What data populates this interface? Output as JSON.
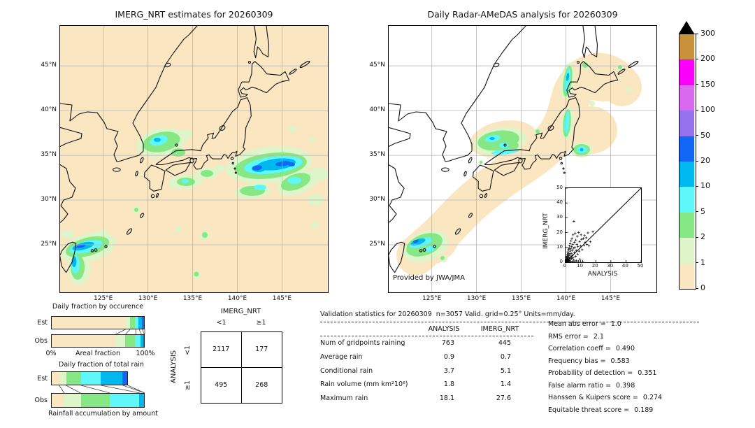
{
  "left_map": {
    "title": "IMERG_NRT estimates for 20260309"
  },
  "right_map": {
    "title": "Daily Radar-AMeDAS analysis for 20260309",
    "credit": "Provided by JWA/JMA"
  },
  "map_axes": {
    "lon_ticks": [
      "125°E",
      "130°E",
      "135°E",
      "140°E",
      "145°E"
    ],
    "lat_ticks": [
      "45°N",
      "40°N",
      "35°N",
      "30°N",
      "25°N"
    ]
  },
  "colorbar": {
    "labels": [
      "0",
      "1",
      "2",
      "5",
      "10",
      "20",
      "50",
      "100",
      "150",
      "200",
      "300"
    ],
    "colors": [
      "#fbe6c2",
      "#ddf5c8",
      "#85e885",
      "#5ef7fa",
      "#00b8f0",
      "#1166f5",
      "#9472ee",
      "#d96af0",
      "#fa00fa",
      "#c8913a"
    ],
    "overflow_color": "#000000"
  },
  "chart_data": [
    {
      "type": "bar",
      "subtype": "stacked-horizontal",
      "title": "Daily fraction by occurence",
      "xlabel": "Areal fraction",
      "x0_label": "0%",
      "x1_label": "100%",
      "categories": [
        "Est",
        "Obs"
      ],
      "series": [
        {
          "name": "Est",
          "length": 1.0,
          "fractions": [
            0.795,
            0.05,
            0.06,
            0.035,
            0.035,
            0.025
          ]
        },
        {
          "name": "Obs",
          "length": 1.0,
          "fractions": [
            0.69,
            0.105,
            0.11,
            0.06,
            0.03,
            0.005
          ]
        }
      ],
      "bin_edges_mm": [
        0,
        1,
        2,
        5,
        10,
        20,
        50
      ]
    },
    {
      "type": "bar",
      "subtype": "stacked-horizontal",
      "title": "Daily fraction of total rain",
      "xlabel": "Rainfall accumulation by amount",
      "categories": [
        "Est",
        "Obs"
      ],
      "series": [
        {
          "name": "Est",
          "length": 0.82,
          "fractions": [
            0.105,
            0.09,
            0.195,
            0.26,
            0.285,
            0.065
          ]
        },
        {
          "name": "Obs",
          "length": 1.0,
          "fractions": [
            0.14,
            0.175,
            0.315,
            0.32,
            0.05,
            0
          ]
        }
      ],
      "bin_edges_mm": [
        0,
        1,
        2,
        5,
        10,
        20,
        50
      ]
    },
    {
      "type": "scatter",
      "xlabel": "ANALYSIS",
      "ylabel": "IMERG_NRT",
      "xlim": [
        0,
        50
      ],
      "ylim": [
        0,
        50
      ],
      "ticks": [
        0,
        10,
        20,
        30,
        40,
        50
      ],
      "diagonal": true,
      "points": [
        [
          0.1,
          0.2
        ],
        [
          0.2,
          0.8
        ],
        [
          0.3,
          0.1
        ],
        [
          0.3,
          1.5
        ],
        [
          0.4,
          0.5
        ],
        [
          0.5,
          2.2
        ],
        [
          0.5,
          0.3
        ],
        [
          0.6,
          1
        ],
        [
          0.7,
          3
        ],
        [
          0.8,
          0.6
        ],
        [
          0.8,
          1.8
        ],
        [
          0.9,
          4
        ],
        [
          1,
          0.2
        ],
        [
          1,
          1.2
        ],
        [
          1.1,
          2.5
        ],
        [
          1.2,
          5.5
        ],
        [
          1.3,
          0.8
        ],
        [
          1.4,
          3.2
        ],
        [
          1.5,
          1.5
        ],
        [
          1.5,
          7
        ],
        [
          1.6,
          0.3
        ],
        [
          1.7,
          4.5
        ],
        [
          1.8,
          2
        ],
        [
          1.9,
          8.5
        ],
        [
          2,
          0.5
        ],
        [
          2,
          3.5
        ],
        [
          2.1,
          1.2
        ],
        [
          2.2,
          6
        ],
        [
          2.3,
          9.5
        ],
        [
          2.5,
          2.8
        ],
        [
          2.5,
          11
        ],
        [
          2.7,
          0.9
        ],
        [
          2.8,
          5
        ],
        [
          3,
          1.8
        ],
        [
          3,
          7.5
        ],
        [
          3.1,
          12.5
        ],
        [
          3.3,
          3.5
        ],
        [
          3.4,
          9
        ],
        [
          3.5,
          0.4
        ],
        [
          3.6,
          14.5
        ],
        [
          3.8,
          6
        ],
        [
          4,
          2.5
        ],
        [
          4,
          10.5
        ],
        [
          4.2,
          16
        ],
        [
          4.4,
          4.5
        ],
        [
          4.5,
          8
        ],
        [
          4.6,
          0.7
        ],
        [
          4.8,
          12
        ],
        [
          5,
          3
        ],
        [
          5,
          18.5
        ],
        [
          5.2,
          9.5
        ],
        [
          5.4,
          1.5
        ],
        [
          5.5,
          27.6
        ],
        [
          5.7,
          6.5
        ],
        [
          5.9,
          13.5
        ],
        [
          6,
          0.5
        ],
        [
          6.2,
          10
        ],
        [
          6.4,
          19.5
        ],
        [
          6.6,
          4
        ],
        [
          6.8,
          15
        ],
        [
          7,
          8
        ],
        [
          7.2,
          1
        ],
        [
          7.5,
          12
        ],
        [
          7.8,
          17.5
        ],
        [
          8,
          5.5
        ],
        [
          8.2,
          10.5
        ],
        [
          8.5,
          0.6
        ],
        [
          8.7,
          20
        ],
        [
          9,
          7.5
        ],
        [
          9.3,
          14
        ],
        [
          9.6,
          2
        ],
        [
          10,
          11
        ],
        [
          10.3,
          18.5
        ],
        [
          10.6,
          15.5
        ],
        [
          11,
          8.5
        ],
        [
          11.4,
          0.8
        ],
        [
          11.8,
          16
        ],
        [
          12.2,
          11.5
        ],
        [
          12.6,
          18
        ],
        [
          13,
          13.5
        ],
        [
          13.6,
          16.5
        ],
        [
          14.2,
          12
        ],
        [
          14.8,
          19.8
        ],
        [
          15.5,
          11
        ],
        [
          16.4,
          13.8
        ],
        [
          18.1,
          20.5
        ]
      ]
    }
  ],
  "contingency": {
    "col_header": "IMERG_NRT",
    "row_header": "ANALYSIS",
    "col_labels": [
      "<1",
      "≥1"
    ],
    "row_labels": [
      "<1",
      "≥1"
    ],
    "cells": [
      [
        "2117",
        "177"
      ],
      [
        "495",
        "268"
      ]
    ]
  },
  "stats": {
    "title": "Validation statistics for 20260309  n=3057 Valid. grid=0.25° Units=mm/day.",
    "columns": [
      "ANALYSIS",
      "IMERG_NRT"
    ],
    "rows": [
      {
        "label": "Num of gridpoints raining",
        "analysis": "763",
        "imerg": "445"
      },
      {
        "label": "Average rain",
        "analysis": "0.9",
        "imerg": "0.7"
      },
      {
        "label": "Conditional rain",
        "analysis": "3.7",
        "imerg": "5.1"
      },
      {
        "label": "Rain volume (mm km²10⁶)",
        "analysis": "1.8",
        "imerg": "1.4"
      },
      {
        "label": "Maximum rain",
        "analysis": "18.1",
        "imerg": "27.6"
      }
    ],
    "metrics": [
      {
        "label": "Mean abs error =",
        "value": "1.0"
      },
      {
        "label": "RMS error =",
        "value": "2.1"
      },
      {
        "label": "Correlation coeff =",
        "value": "0.490"
      },
      {
        "label": "Frequency bias =",
        "value": "0.583"
      },
      {
        "label": "Probability of detection =",
        "value": "0.351"
      },
      {
        "label": "False alarm ratio =",
        "value": "0.398"
      },
      {
        "label": "Hanssen & Kuipers score =",
        "value": "0.274"
      },
      {
        "label": "Equitable threat score =",
        "value": "0.189"
      }
    ]
  }
}
